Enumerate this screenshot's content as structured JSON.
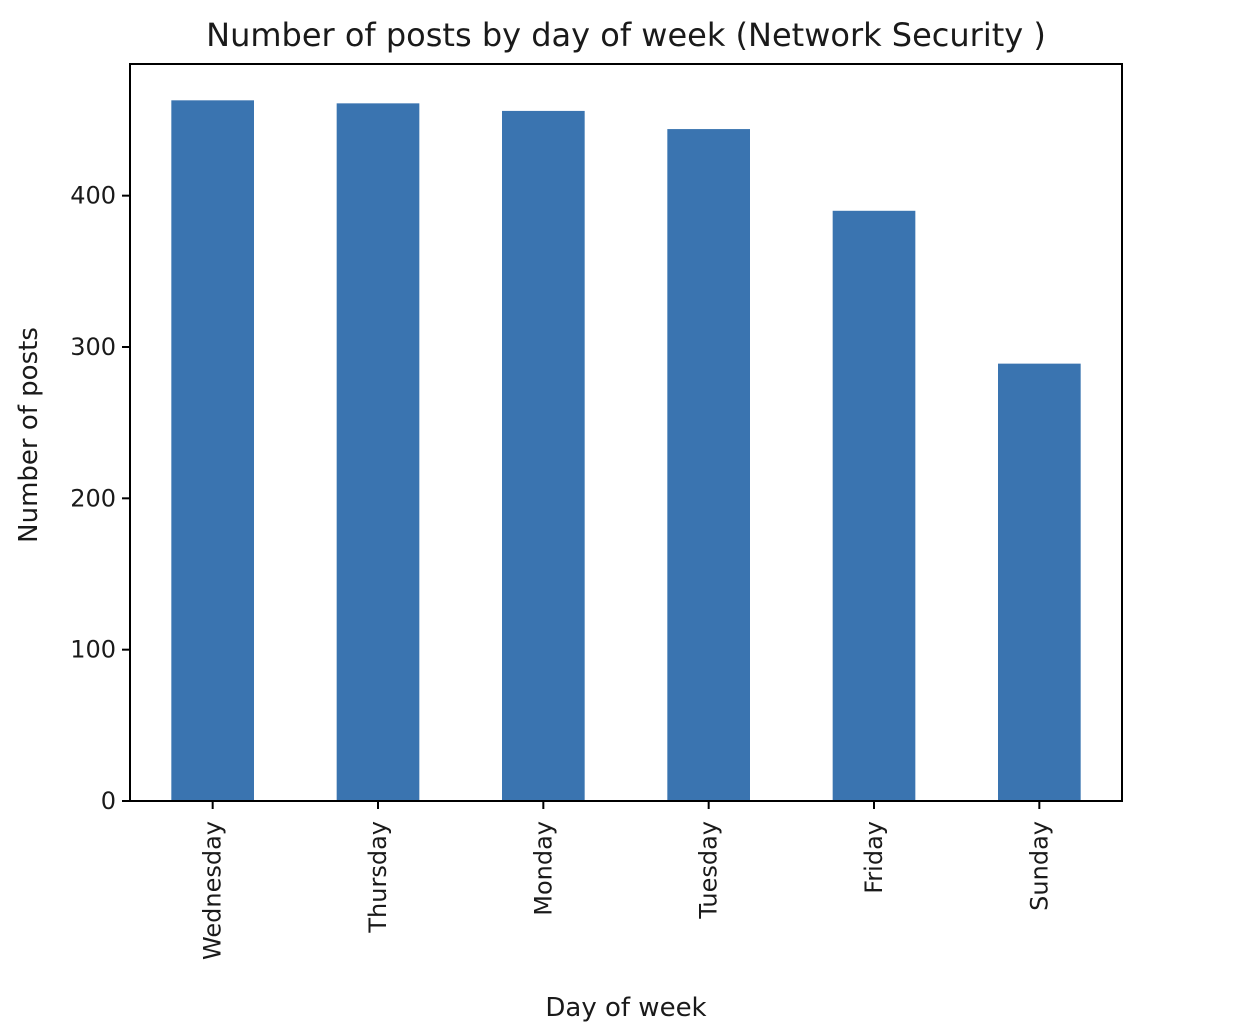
{
  "chart_data": {
    "type": "bar",
    "title": "Number of posts by day of week (Network Security )",
    "xlabel": "Day of week",
    "ylabel": "Number of posts",
    "categories": [
      "Wednesday",
      "Thursday",
      "Monday",
      "Tuesday",
      "Friday",
      "Sunday"
    ],
    "values": [
      463,
      461,
      456,
      444,
      390,
      289
    ],
    "ylim": [
      0,
      487
    ],
    "yticks": [
      0,
      100,
      200,
      300,
      400
    ],
    "bar_color": "#3a74b0",
    "grid": false,
    "legend": "none"
  }
}
